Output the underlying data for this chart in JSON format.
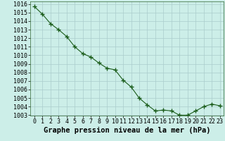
{
  "x": [
    0,
    1,
    2,
    3,
    4,
    5,
    6,
    7,
    8,
    9,
    10,
    11,
    12,
    13,
    14,
    15,
    16,
    17,
    18,
    19,
    20,
    21,
    22,
    23
  ],
  "y": [
    1015.7,
    1014.8,
    1013.7,
    1013.0,
    1012.2,
    1011.0,
    1010.2,
    1009.8,
    1009.1,
    1008.5,
    1008.3,
    1007.1,
    1006.3,
    1005.0,
    1004.2,
    1003.5,
    1003.6,
    1003.5,
    1003.0,
    1003.0,
    1003.5,
    1004.0,
    1004.3,
    1004.1
  ],
  "ylim": [
    1003,
    1016
  ],
  "xlim": [
    -0.5,
    23.5
  ],
  "yticks": [
    1003,
    1004,
    1005,
    1006,
    1007,
    1008,
    1009,
    1010,
    1011,
    1012,
    1013,
    1014,
    1015,
    1016
  ],
  "xticks": [
    0,
    1,
    2,
    3,
    4,
    5,
    6,
    7,
    8,
    9,
    10,
    11,
    12,
    13,
    14,
    15,
    16,
    17,
    18,
    19,
    20,
    21,
    22,
    23
  ],
  "line_color": "#1a5c1a",
  "marker": "+",
  "marker_size": 4,
  "bg_color": "#cceee8",
  "grid_color": "#aacccc",
  "xlabel": "Graphe pression niveau de la mer (hPa)",
  "xlabel_fontsize": 7.5,
  "tick_fontsize": 6,
  "figure_bg": "#cceee8"
}
